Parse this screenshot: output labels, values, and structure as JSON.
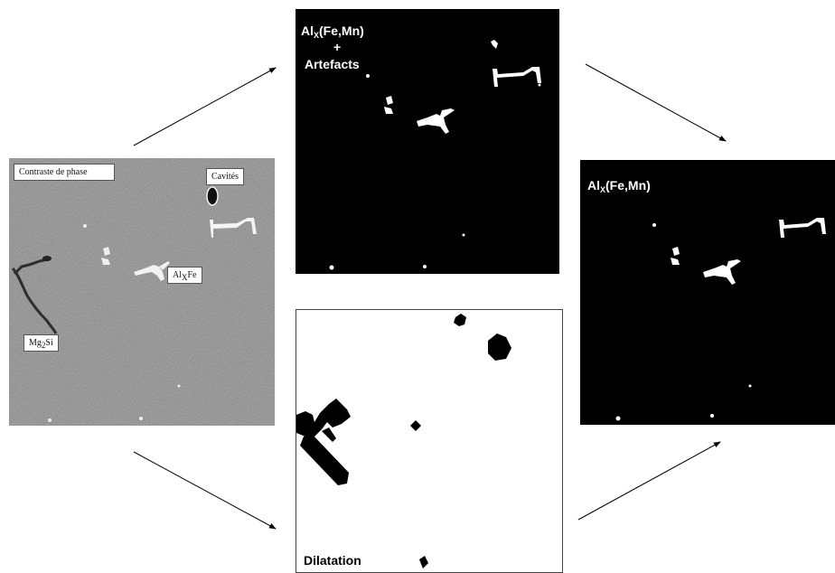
{
  "source_panel": {
    "label_phase_contrast": "Contraste de phase",
    "label_cavities": "Cavités",
    "label_alxfe_base": "Al",
    "label_alxfe_sub": "X",
    "label_alxfe_tail": "Fe",
    "label_mg2si_base": "Mg",
    "label_mg2si_sub": "2",
    "label_mg2si_tail": "Si"
  },
  "threshold_panel": {
    "title_base": "Al",
    "title_sub": "X",
    "title_tail": "(Fe,Mn)",
    "plus": "+",
    "artefacts": "Artefacts"
  },
  "dilation_panel": {
    "label": "Dilatation"
  },
  "result_panel": {
    "title_base": "Al",
    "title_sub": "X",
    "title_tail": "(Fe,Mn)"
  },
  "colors": {
    "binary_foreground": "#ffffff",
    "binary_background": "#000000",
    "micrograph_grey": "#8e8e8e"
  }
}
